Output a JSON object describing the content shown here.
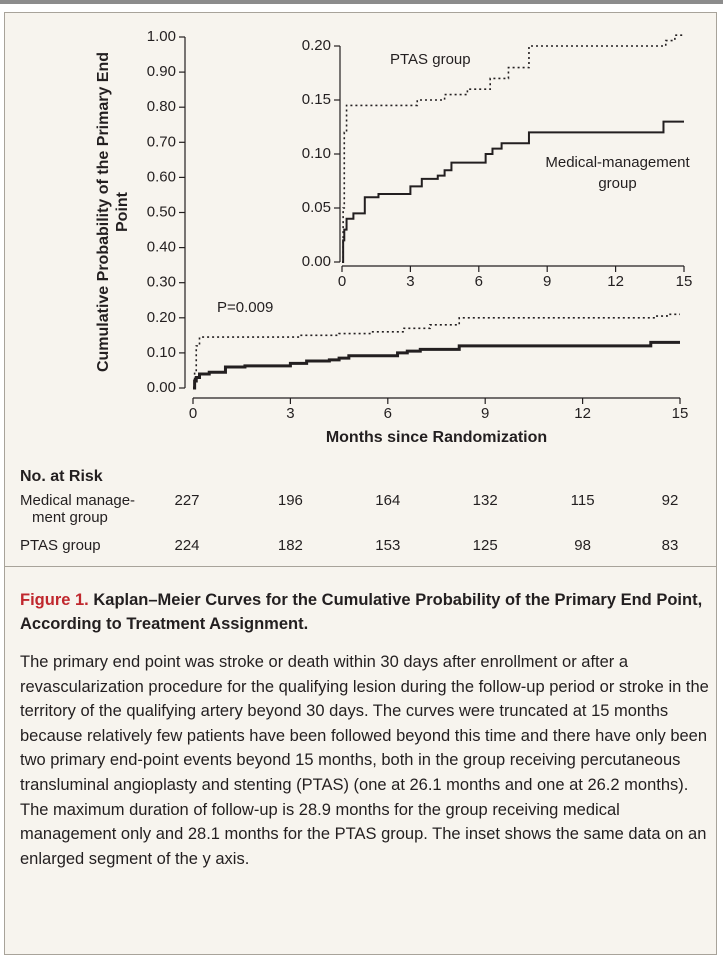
{
  "chart_data": [
    {
      "type": "line",
      "step": "post",
      "ylim": [
        0,
        1
      ],
      "xlim": [
        0,
        15
      ],
      "yticks": [
        {
          "value": 0,
          "label": "0.00"
        },
        {
          "value": 0.1,
          "label": "0.10"
        },
        {
          "value": 0.2,
          "label": "0.20"
        },
        {
          "value": 0.3,
          "label": "0.30"
        },
        {
          "value": 0.4,
          "label": "0.40"
        },
        {
          "value": 0.5,
          "label": "0.50"
        },
        {
          "value": 0.6,
          "label": "0.60"
        },
        {
          "value": 0.7,
          "label": "0.70"
        },
        {
          "value": 0.8,
          "label": "0.80"
        },
        {
          "value": 0.9,
          "label": "0.90"
        },
        {
          "value": 1,
          "label": "1.00"
        }
      ],
      "xticks": [
        0,
        3,
        6,
        9,
        12,
        15
      ],
      "y_label": "Cumulative Probability of the Primary End Point",
      "x_label": "Months since Randomization",
      "annotations": [
        "P=0.009"
      ],
      "series": [
        {
          "color": "#231f20",
          "dash": "solid",
          "x": [
            0,
            0.05,
            0.1,
            0.2,
            0.5,
            1.0,
            1.6,
            3.0,
            3.5,
            4.2,
            4.5,
            4.8,
            6.3,
            6.6,
            7.0,
            8.2,
            14.1,
            15
          ],
          "values": [
            0,
            0.02,
            0.03,
            0.04,
            0.045,
            0.06,
            0.063,
            0.07,
            0.077,
            0.08,
            0.085,
            0.092,
            0.1,
            0.105,
            0.11,
            0.12,
            0.13,
            0.13
          ]
        },
        {
          "color": "#231f20",
          "dash": "dotted",
          "x": [
            0,
            0.05,
            0.1,
            0.2,
            2.5,
            3.3,
            4.5,
            5.5,
            6.5,
            7.3,
            8.2,
            14.2,
            14.6,
            15
          ],
          "values": [
            0,
            0.05,
            0.12,
            0.145,
            0.145,
            0.15,
            0.155,
            0.16,
            0.17,
            0.18,
            0.2,
            0.205,
            0.21,
            0.21
          ]
        }
      ]
    },
    {
      "type": "line",
      "step": "post",
      "ylim": [
        0,
        0.2
      ],
      "xlim": [
        0,
        15
      ],
      "yticks": [
        {
          "value": 0,
          "label": "0.00"
        },
        {
          "value": 0.05,
          "label": "0.05"
        },
        {
          "value": 0.1,
          "label": "0.10"
        },
        {
          "value": 0.15,
          "label": "0.15"
        },
        {
          "value": 0.2,
          "label": "0.20"
        }
      ],
      "xticks": [
        0,
        3,
        6,
        9,
        12,
        15
      ],
      "series": [
        {
          "name": "Medical-management group",
          "color": "#231f20",
          "dash": "solid",
          "x": [
            0,
            0.05,
            0.1,
            0.2,
            0.5,
            1.0,
            1.6,
            3.0,
            3.5,
            4.2,
            4.5,
            4.8,
            6.3,
            6.6,
            7.0,
            8.2,
            14.1,
            15
          ],
          "values": [
            0,
            0.02,
            0.03,
            0.04,
            0.045,
            0.06,
            0.063,
            0.07,
            0.077,
            0.08,
            0.085,
            0.092,
            0.1,
            0.105,
            0.11,
            0.12,
            0.13,
            0.13
          ]
        },
        {
          "name": "PTAS group",
          "color": "#231f20",
          "dash": "dotted",
          "x": [
            0,
            0.05,
            0.1,
            0.2,
            2.5,
            3.3,
            4.5,
            5.5,
            6.5,
            7.3,
            8.2,
            14.2,
            14.6,
            15
          ],
          "values": [
            0,
            0.05,
            0.12,
            0.145,
            0.145,
            0.15,
            0.155,
            0.16,
            0.17,
            0.18,
            0.2,
            0.205,
            0.21,
            0.21
          ]
        }
      ]
    }
  ],
  "risk_table": {
    "title": "No. at Risk",
    "rows": [
      {
        "label": "Medical manage-ment group",
        "values": [
          227,
          196,
          164,
          132,
          115,
          92
        ]
      },
      {
        "label": "PTAS group",
        "values": [
          224,
          182,
          153,
          125,
          98,
          83
        ]
      }
    ]
  },
  "caption": {
    "label": "Figure 1.",
    "title": "Kaplan–Meier Curves for the Cumulative Probability of the Primary End Point, According to Treatment Assignment.",
    "text": "The primary end point was stroke or death within 30 days after enrollment or after a revascularization procedure for the qualifying lesion during the follow-up period or stroke in the territory of the qualifying artery beyond 30 days. The curves were truncated at 15 months because relatively few patients have been followed beyond this time and there have only been two primary end-point events beyond 15 months, both in the group receiving percutaneous transluminal angioplasty and stenting (PTAS) (one at 26.1 months and one at 26.2 months). The maximum duration of follow-up is 28.9 months for the group receiving medical management only and 28.1 months for the PTAS group. The inset shows the same data on an enlarged segment of the y axis."
  }
}
